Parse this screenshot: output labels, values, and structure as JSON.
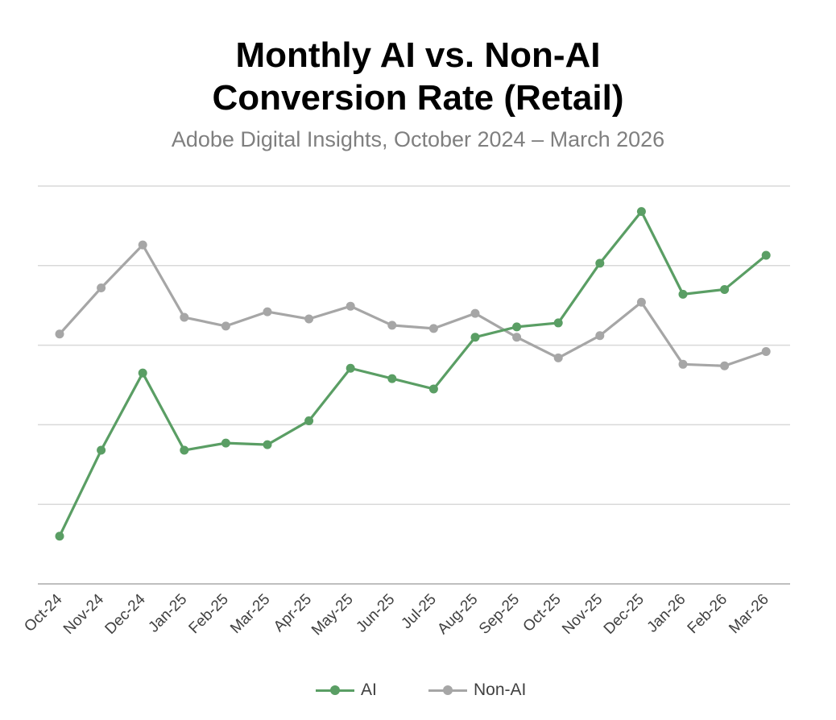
{
  "title_line1": "Monthly AI vs. Non-AI",
  "title_line2": "Conversion Rate (Retail)",
  "subtitle": "Adobe Digital Insights, October 2024 – March 2026",
  "colors": {
    "ai": "#5a9e64",
    "non_ai": "#a6a6a6",
    "grid": "#d9d9d9",
    "axis": "#bfbfbf"
  },
  "chart_data": {
    "type": "line",
    "title": "Monthly AI vs. Non-AI Conversion Rate (Retail)",
    "subtitle": "Adobe Digital Insights, October 2024 – March 2026",
    "x": [
      "Oct-24",
      "Nov-24",
      "Dec-24",
      "Jan-25",
      "Feb-25",
      "Mar-25",
      "Apr-25",
      "May-25",
      "Jun-25",
      "Jul-25",
      "Aug-25",
      "Sep-25",
      "Oct-25",
      "Nov-25",
      "Dec-25",
      "Jan-26",
      "Feb-26",
      "Mar-26"
    ],
    "series": [
      {
        "name": "AI",
        "values": [
          0.6,
          1.68,
          2.65,
          1.68,
          1.77,
          1.75,
          2.05,
          2.71,
          2.58,
          2.45,
          3.1,
          3.23,
          3.28,
          4.03,
          4.68,
          3.64,
          3.7,
          4.13
        ]
      },
      {
        "name": "Non-AI",
        "values": [
          3.14,
          3.72,
          4.26,
          3.35,
          3.24,
          3.42,
          3.33,
          3.49,
          3.25,
          3.21,
          3.4,
          3.1,
          2.84,
          3.12,
          3.54,
          2.76,
          2.74,
          2.92
        ]
      }
    ],
    "ylim": [
      0,
      5
    ],
    "grid": true,
    "y_tick_labels_shown": false,
    "legend_position": "bottom"
  }
}
